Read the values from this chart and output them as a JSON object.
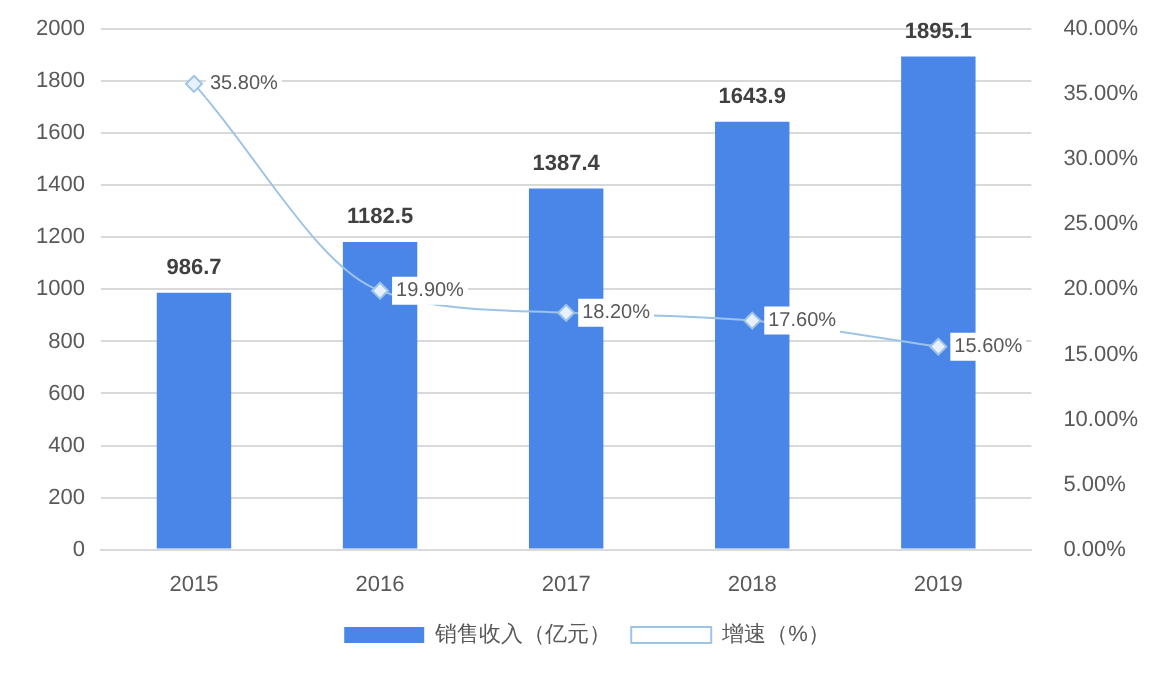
{
  "chart_data": {
    "type": "bar",
    "categories": [
      "2015",
      "2016",
      "2017",
      "2018",
      "2019"
    ],
    "series": [
      {
        "name": "销售收入（亿元）",
        "color": "#4a86e8",
        "values": [
          986.7,
          1182.5,
          1387.4,
          1643.9,
          1895.1
        ],
        "value_labels": [
          "986.7",
          "1182.5",
          "1387.4",
          "1643.9",
          "1895.1"
        ]
      },
      {
        "name": "增速（%）",
        "type": "line",
        "axis": "y2",
        "color": "#9dc3e6",
        "marker": "diamond",
        "values": [
          35.8,
          19.9,
          18.2,
          17.6,
          15.6
        ],
        "value_labels": [
          "35.80%",
          "19.90%",
          "18.20%",
          "17.60%",
          "15.60%"
        ]
      }
    ],
    "ylim": [
      0,
      2000
    ],
    "yticks": [
      0,
      200,
      400,
      600,
      800,
      1000,
      1200,
      1400,
      1600,
      1800,
      2000
    ],
    "y2lim": [
      0,
      40
    ],
    "y2ticks": [
      {
        "value": 0,
        "label": "0.00%"
      },
      {
        "value": 5,
        "label": "5.00%"
      },
      {
        "value": 10,
        "label": "10.00%"
      },
      {
        "value": 15,
        "label": "15.00%"
      },
      {
        "value": 20,
        "label": "20.00%"
      },
      {
        "value": 25,
        "label": "25.00%"
      },
      {
        "value": 30,
        "label": "30.00%"
      },
      {
        "value": 35,
        "label": "35.00%"
      },
      {
        "value": 40,
        "label": "40.00%"
      }
    ],
    "grid": "y",
    "legend": "bottom"
  }
}
